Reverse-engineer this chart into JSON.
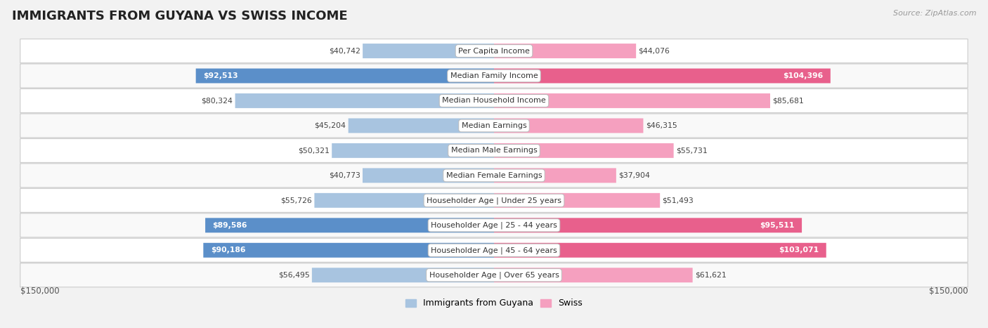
{
  "title": "IMMIGRANTS FROM GUYANA VS SWISS INCOME",
  "source": "Source: ZipAtlas.com",
  "categories": [
    "Per Capita Income",
    "Median Family Income",
    "Median Household Income",
    "Median Earnings",
    "Median Male Earnings",
    "Median Female Earnings",
    "Householder Age | Under 25 years",
    "Householder Age | 25 - 44 years",
    "Householder Age | 45 - 64 years",
    "Householder Age | Over 65 years"
  ],
  "guyana_values": [
    40742,
    92513,
    80324,
    45204,
    50321,
    40773,
    55726,
    89586,
    90186,
    56495
  ],
  "swiss_values": [
    44076,
    104396,
    85681,
    46315,
    55731,
    37904,
    51493,
    95511,
    103071,
    61621
  ],
  "guyana_labels": [
    "$40,742",
    "$92,513",
    "$80,324",
    "$45,204",
    "$50,321",
    "$40,773",
    "$55,726",
    "$89,586",
    "$90,186",
    "$56,495"
  ],
  "swiss_labels": [
    "$44,076",
    "$104,396",
    "$85,681",
    "$46,315",
    "$55,731",
    "$37,904",
    "$51,493",
    "$95,511",
    "$103,071",
    "$61,621"
  ],
  "guyana_color_light": "#a8c4e0",
  "guyana_color_dark": "#5b8fc9",
  "swiss_color_light": "#f5a0bf",
  "swiss_color_dark": "#e8608c",
  "max_value": 150000,
  "x_label_left": "$150,000",
  "x_label_right": "$150,000",
  "legend_guyana": "Immigrants from Guyana",
  "legend_swiss": "Swiss",
  "background_color": "#f2f2f2",
  "row_color_odd": "#f9f9f9",
  "row_color_even": "#ffffff",
  "title_fontsize": 13,
  "bar_height": 0.58,
  "guyana_dark_threshold": 85000,
  "swiss_dark_threshold": 90000
}
